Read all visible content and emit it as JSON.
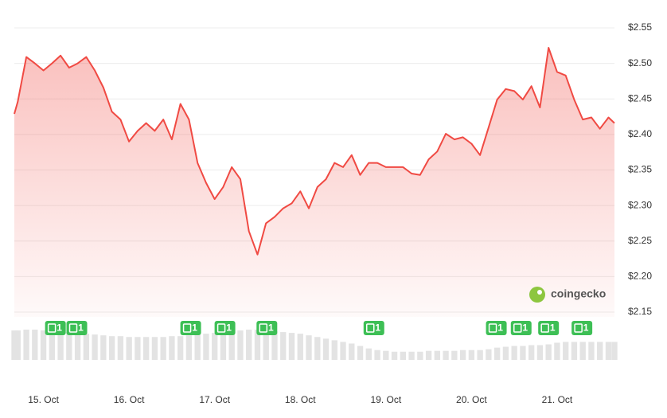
{
  "chart_data": {
    "type": "area",
    "color": "#f04a43",
    "x": [
      -0.34,
      -0.3,
      -0.2,
      -0.1,
      0.0,
      0.1,
      0.2,
      0.3,
      0.4,
      0.5,
      0.6,
      0.7,
      0.8,
      0.9,
      1.0,
      1.1,
      1.2,
      1.3,
      1.4,
      1.5,
      1.6,
      1.7,
      1.8,
      1.9,
      2.0,
      2.1,
      2.2,
      2.3,
      2.4,
      2.5,
      2.6,
      2.7,
      2.8,
      2.9,
      3.0,
      3.1,
      3.2,
      3.3,
      3.4,
      3.5,
      3.6,
      3.7,
      3.8,
      3.9,
      4.0,
      4.1,
      4.2,
      4.3,
      4.4,
      4.5,
      4.6,
      4.7,
      4.8,
      4.9,
      5.0,
      5.1,
      5.2,
      5.3,
      5.4,
      5.5,
      5.6,
      5.7,
      5.8,
      5.9,
      6.0,
      6.1,
      6.2,
      6.3,
      6.4,
      6.5,
      6.6,
      6.67
    ],
    "values": [
      2.429,
      2.446,
      2.509,
      2.5,
      2.49,
      2.5,
      2.511,
      2.494,
      2.5,
      2.509,
      2.49,
      2.466,
      2.432,
      2.421,
      2.39,
      2.405,
      2.416,
      2.405,
      2.421,
      2.393,
      2.443,
      2.421,
      2.36,
      2.332,
      2.309,
      2.326,
      2.354,
      2.337,
      2.264,
      2.231,
      2.275,
      2.284,
      2.296,
      2.303,
      2.32,
      2.296,
      2.326,
      2.337,
      2.36,
      2.354,
      2.371,
      2.343,
      2.36,
      2.36,
      2.354,
      2.354,
      2.354,
      2.345,
      2.343,
      2.365,
      2.376,
      2.401,
      2.393,
      2.396,
      2.387,
      2.371,
      2.41,
      2.449,
      2.464,
      2.461,
      2.449,
      2.468,
      2.438,
      2.522,
      2.488,
      2.483,
      2.449,
      2.421,
      2.424,
      2.408,
      2.424,
      2.416
    ],
    "volume": [
      36,
      36,
      37,
      37,
      36,
      36,
      35,
      34,
      33,
      32,
      31,
      30,
      29,
      29,
      28,
      28,
      28,
      28,
      28,
      29,
      29,
      30,
      31,
      32,
      33,
      34,
      35,
      36,
      37,
      37,
      36,
      35,
      34,
      33,
      32,
      30,
      28,
      26,
      24,
      22,
      20,
      17,
      14,
      12,
      11,
      10,
      10,
      10,
      10,
      11,
      11,
      11,
      11,
      12,
      12,
      12,
      13,
      15,
      16,
      17,
      17,
      18,
      18,
      19,
      21,
      22,
      22,
      22,
      22,
      22,
      22,
      22
    ],
    "volume_color": "#e3e3e3",
    "xlim": [
      -0.34,
      6.67
    ],
    "xticks": [
      {
        "value": 0,
        "label": "15. Oct"
      },
      {
        "value": 1,
        "label": "16. Oct"
      },
      {
        "value": 2,
        "label": "17. Oct"
      },
      {
        "value": 3,
        "label": "18. Oct"
      },
      {
        "value": 4,
        "label": "19. Oct"
      },
      {
        "value": 5,
        "label": "20. Oct"
      },
      {
        "value": 6,
        "label": "21. Oct"
      }
    ],
    "ylim": [
      2.15,
      2.55
    ],
    "yticks": [
      {
        "value": 2.15,
        "label": "$2.15"
      },
      {
        "value": 2.2,
        "label": "$2.20"
      },
      {
        "value": 2.25,
        "label": "$2.25"
      },
      {
        "value": 2.3,
        "label": "$2.30"
      },
      {
        "value": 2.35,
        "label": "$2.35"
      },
      {
        "value": 2.4,
        "label": "$2.40"
      },
      {
        "value": 2.45,
        "label": "$2.45"
      },
      {
        "value": 2.5,
        "label": "$2.50"
      },
      {
        "value": 2.55,
        "label": "$2.55"
      }
    ],
    "grid": true,
    "news": [
      {
        "x": 0.14,
        "label": "1"
      },
      {
        "x": 0.39,
        "label": "1"
      },
      {
        "x": 1.72,
        "label": "1"
      },
      {
        "x": 2.12,
        "label": "1"
      },
      {
        "x": 2.61,
        "label": "1"
      },
      {
        "x": 3.86,
        "label": "1"
      },
      {
        "x": 5.29,
        "label": "1"
      },
      {
        "x": 5.58,
        "label": "1"
      },
      {
        "x": 5.9,
        "label": "1"
      },
      {
        "x": 6.29,
        "label": "1"
      }
    ],
    "watermark": "coingecko"
  }
}
